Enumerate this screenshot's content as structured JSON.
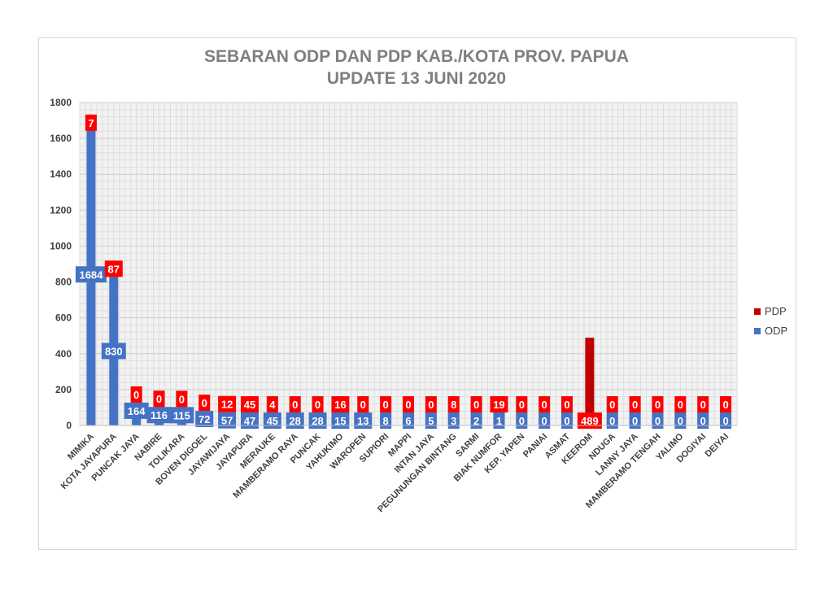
{
  "chart_data": {
    "type": "bar",
    "stacked": true,
    "title_lines": [
      "SEBARAN ODP DAN PDP KAB./KOTA PROV. PAPUA",
      "UPDATE 13 JUNI 2020"
    ],
    "categories": [
      "MIMIKA",
      "KOTA JAYAPURA",
      "PUNCAK JAYA",
      "NABIRE",
      "TOLIKARA",
      "BOVEN DIGOEL",
      "JAYAWIJAYA",
      "JAYAPURA",
      "MERAUKE",
      "MAMBERAMO RAYA",
      "PUNCAK",
      "YAHUKIMO",
      "WAROPEN",
      "SUPIORI",
      "MAPPI",
      "INTAN JAYA",
      "PEGUNUNGAN BINTANG",
      "SARMI",
      "BIAK NUMFOR",
      "KEP. YAPEN",
      "PANIAI",
      "ASMAT",
      "KEEROM",
      "NDUGA",
      "LANNY JAYA",
      "MAMBERAMO TENGAH",
      "YALIMO",
      "DOGIYAI",
      "DEIYAI"
    ],
    "series": [
      {
        "name": "ODP",
        "color": "#4472c4",
        "label_color": "#4472c4",
        "values": [
          1684,
          830,
          164,
          116,
          115,
          72,
          57,
          47,
          45,
          28,
          28,
          15,
          13,
          8,
          6,
          5,
          3,
          2,
          1,
          0,
          0,
          0,
          0,
          0,
          0,
          0,
          0,
          0,
          0
        ]
      },
      {
        "name": "PDP",
        "color": "#c00000",
        "label_color": "#ff0000",
        "values": [
          7,
          87,
          0,
          0,
          0,
          0,
          12,
          45,
          4,
          0,
          0,
          16,
          0,
          0,
          0,
          0,
          8,
          0,
          19,
          0,
          0,
          0,
          489,
          0,
          0,
          0,
          0,
          0,
          0
        ]
      }
    ],
    "y_ticks": [
      "0",
      "200",
      "400",
      "600",
      "800",
      "1000",
      "1200",
      "1400",
      "1600",
      "1800"
    ],
    "ylim": [
      0,
      1800
    ],
    "grid": true,
    "legend_position": "right"
  }
}
